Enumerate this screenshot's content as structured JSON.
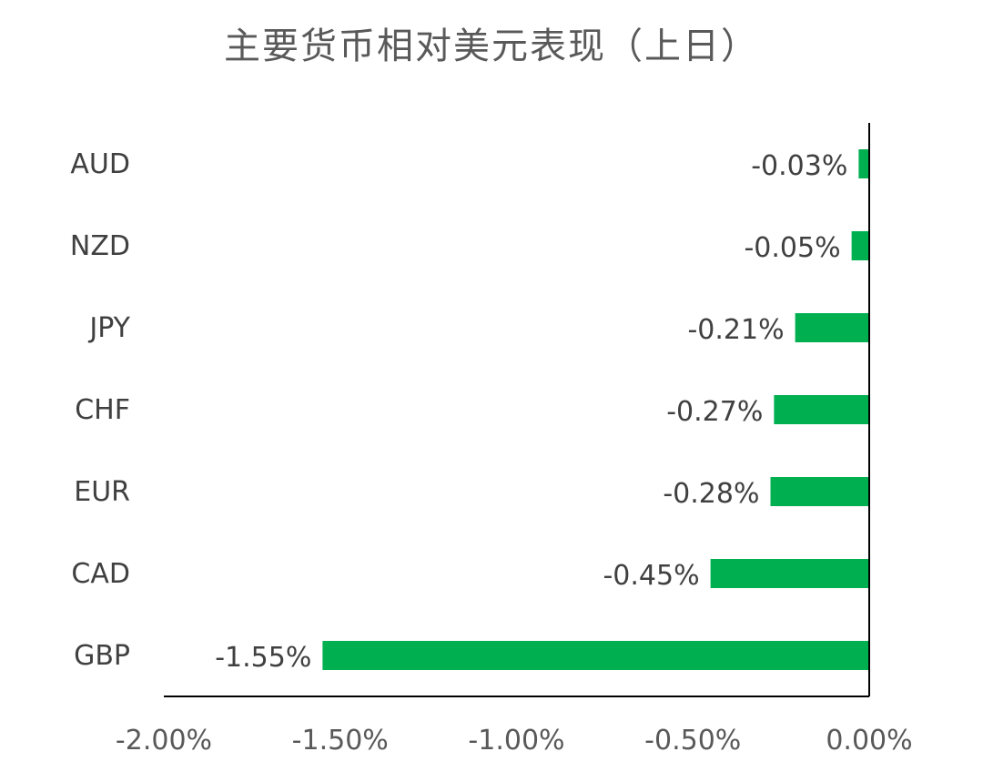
{
  "chart_data": {
    "type": "bar",
    "orientation": "horizontal",
    "title": "主要货币相对美元表现（上日）",
    "categories": [
      "AUD",
      "NZD",
      "JPY",
      "CHF",
      "EUR",
      "CAD",
      "GBP"
    ],
    "values": [
      -0.03,
      -0.05,
      -0.21,
      -0.27,
      -0.28,
      -0.45,
      -1.55
    ],
    "value_labels": [
      "-0.03%",
      "-0.05%",
      "-0.21%",
      "-0.27%",
      "-0.28%",
      "-0.45%",
      "-1.55%"
    ],
    "xlim": [
      -2.0,
      0.0
    ],
    "xticks": [
      -2.0,
      -1.5,
      -1.0,
      -0.5,
      0.0
    ],
    "xtick_labels": [
      "-2.00%",
      "-1.50%",
      "-1.00%",
      "-0.50%",
      "0.00%"
    ],
    "xlabel": "",
    "ylabel": "",
    "grid": false,
    "legend": "none",
    "bar_color": "#00b050"
  }
}
